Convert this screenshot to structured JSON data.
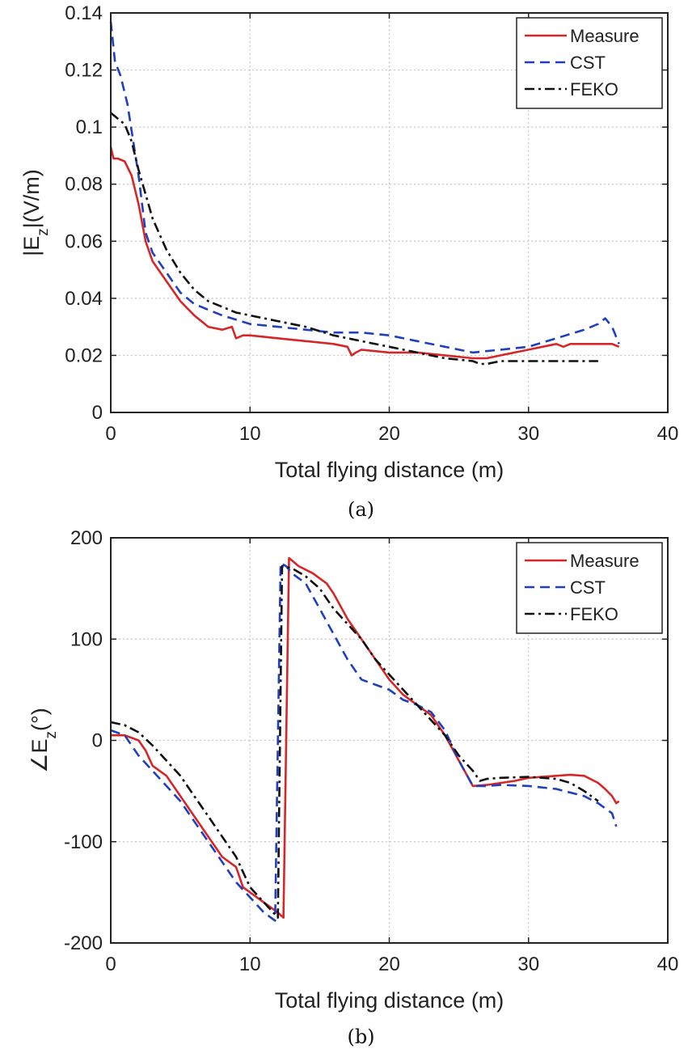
{
  "chart_data": [
    {
      "type": "line",
      "caption": "(a)",
      "xlabel": "Total flying distance (m)",
      "ylabel": "|E_z|(V/m)",
      "xlim": [
        0,
        40
      ],
      "ylim": [
        0,
        0.14
      ],
      "xticks": [
        "0",
        "10",
        "20",
        "30",
        "40"
      ],
      "yticks": [
        "0",
        "0.02",
        "0.04",
        "0.06",
        "0.08",
        "0.1",
        "0.12",
        "0.14"
      ],
      "grid": true,
      "legend_position": "top-right",
      "series": [
        {
          "name": "Measure",
          "color": "#d62728",
          "style": "solid",
          "x": [
            0,
            0.2,
            0.5,
            1.0,
            1.5,
            2.0,
            2.5,
            3.0,
            4.0,
            5.0,
            6.0,
            7.0,
            8.0,
            8.7,
            9.0,
            9.5,
            10,
            12,
            14,
            16,
            17,
            17.3,
            17.6,
            18,
            20,
            22,
            24,
            26,
            27,
            28,
            29,
            30,
            31,
            32,
            32.5,
            33,
            34,
            35,
            36,
            36.5
          ],
          "y": [
            0.093,
            0.089,
            0.089,
            0.088,
            0.083,
            0.073,
            0.06,
            0.053,
            0.046,
            0.039,
            0.034,
            0.03,
            0.029,
            0.03,
            0.026,
            0.027,
            0.027,
            0.026,
            0.025,
            0.024,
            0.023,
            0.02,
            0.021,
            0.022,
            0.021,
            0.021,
            0.02,
            0.019,
            0.019,
            0.02,
            0.021,
            0.022,
            0.023,
            0.024,
            0.023,
            0.024,
            0.024,
            0.024,
            0.024,
            0.023
          ]
        },
        {
          "name": "CST",
          "color": "#1f3fbf",
          "style": "dashed",
          "x": [
            0,
            0.3,
            0.7,
            1.2,
            2.0,
            2.5,
            3.0,
            4.0,
            5.0,
            6.0,
            7.0,
            8.0,
            10,
            12,
            14,
            16,
            18,
            20,
            22,
            24,
            26,
            28,
            30,
            32,
            34,
            35,
            35.5,
            36,
            36.5
          ],
          "y": [
            0.137,
            0.123,
            0.118,
            0.108,
            0.083,
            0.063,
            0.056,
            0.049,
            0.042,
            0.038,
            0.036,
            0.034,
            0.031,
            0.03,
            0.029,
            0.028,
            0.028,
            0.027,
            0.025,
            0.023,
            0.021,
            0.022,
            0.023,
            0.026,
            0.029,
            0.031,
            0.033,
            0.03,
            0.024
          ]
        },
        {
          "name": "FEKO",
          "color": "#111111",
          "style": "dashdot",
          "x": [
            0,
            0.5,
            1.0,
            1.5,
            2.0,
            3.0,
            4.0,
            5.0,
            6.0,
            7.0,
            8.0,
            9.0,
            10,
            12,
            14,
            16,
            18,
            20,
            22,
            24,
            26,
            26.5,
            27,
            28,
            30,
            32,
            34,
            35
          ],
          "y": [
            0.105,
            0.103,
            0.101,
            0.095,
            0.085,
            0.068,
            0.057,
            0.049,
            0.043,
            0.039,
            0.037,
            0.035,
            0.034,
            0.032,
            0.03,
            0.027,
            0.025,
            0.023,
            0.021,
            0.019,
            0.018,
            0.017,
            0.017,
            0.018,
            0.018,
            0.018,
            0.018,
            0.018
          ]
        }
      ]
    },
    {
      "type": "line",
      "caption": "(b)",
      "xlabel": "Total flying distance (m)",
      "ylabel": "∠E_z(°)",
      "xlim": [
        0,
        40
      ],
      "ylim": [
        -200,
        200
      ],
      "xticks": [
        "0",
        "10",
        "20",
        "30",
        "40"
      ],
      "yticks": [
        "-200",
        "-100",
        "0",
        "100",
        "200"
      ],
      "grid": true,
      "legend_position": "top-right",
      "series": [
        {
          "name": "Measure",
          "color": "#d62728",
          "style": "solid",
          "x": [
            0,
            1.0,
            2.0,
            2.5,
            3.0,
            4.0,
            5.0,
            6.0,
            7.0,
            8.0,
            9.0,
            9.5,
            10,
            11,
            12,
            12.4,
            12.8,
            13.5,
            14.5,
            15.5,
            16,
            17,
            18,
            19,
            20,
            21,
            22,
            23,
            24,
            25,
            26,
            27,
            28,
            29,
            30,
            31,
            32,
            33,
            34,
            35,
            35.5,
            36,
            36.3,
            36.5
          ],
          "y": [
            5,
            5,
            0,
            -10,
            -25,
            -35,
            -55,
            -75,
            -95,
            -115,
            -125,
            -145,
            -150,
            -160,
            -170,
            -175,
            180,
            172,
            165,
            155,
            145,
            120,
            100,
            80,
            60,
            45,
            35,
            25,
            5,
            -20,
            -45,
            -44,
            -42,
            -40,
            -37,
            -36,
            -35,
            -34,
            -35,
            -42,
            -48,
            -55,
            -62,
            -60
          ]
        },
        {
          "name": "CST",
          "color": "#1f3fbf",
          "style": "dashed",
          "x": [
            0,
            1.0,
            2.0,
            3.0,
            4.0,
            5.0,
            6.0,
            7.0,
            8.0,
            9.0,
            10,
            11,
            11.8,
            12.2,
            12.6,
            13,
            14,
            15,
            16,
            17,
            18,
            19,
            20,
            21,
            22,
            23,
            24,
            25,
            26,
            27,
            28,
            30,
            32,
            34,
            35,
            36,
            36.3
          ],
          "y": [
            10,
            5,
            -15,
            -30,
            -45,
            -60,
            -80,
            -100,
            -120,
            -140,
            -155,
            -170,
            -178,
            175,
            172,
            165,
            155,
            130,
            105,
            80,
            60,
            55,
            50,
            40,
            35,
            28,
            10,
            -20,
            -45,
            -45,
            -44,
            -45,
            -48,
            -55,
            -62,
            -72,
            -85
          ]
        },
        {
          "name": "FEKO",
          "color": "#111111",
          "style": "dashdot",
          "x": [
            0,
            1.0,
            2.0,
            3.0,
            4.0,
            5.0,
            6.0,
            7.0,
            8.0,
            9.0,
            10,
            11,
            12,
            12.3,
            13,
            14,
            15,
            16,
            17,
            18,
            19,
            20,
            21,
            22,
            23,
            24,
            25,
            26,
            26.5,
            27,
            28,
            30,
            32,
            33,
            34,
            35
          ],
          "y": [
            18,
            15,
            8,
            -5,
            -20,
            -35,
            -55,
            -75,
            -95,
            -115,
            -145,
            -160,
            -175,
            172,
            170,
            162,
            150,
            130,
            115,
            100,
            80,
            65,
            50,
            35,
            20,
            5,
            -15,
            -30,
            -40,
            -38,
            -37,
            -36,
            -38,
            -42,
            -50,
            -60
          ]
        }
      ]
    }
  ]
}
